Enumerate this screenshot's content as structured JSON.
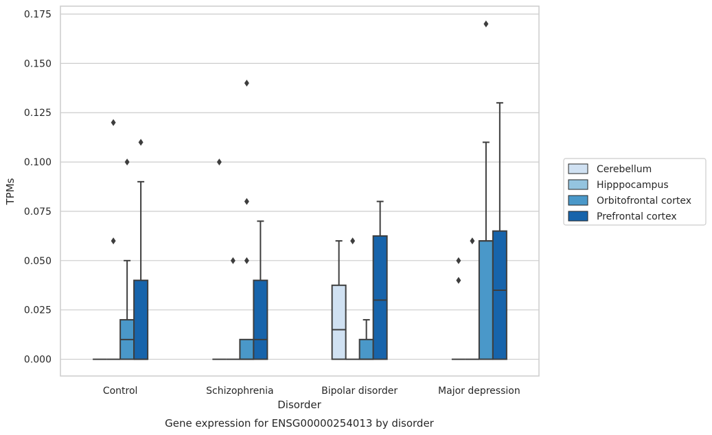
{
  "chart_data": {
    "type": "box",
    "caption": "Gene expression for ENSG00000254013 by disorder",
    "xlabel": "Disorder",
    "ylabel": "TPMs",
    "ylim": [
      -0.0085,
      0.179
    ],
    "yticks": [
      0,
      0.025,
      0.05,
      0.075,
      0.1,
      0.125,
      0.15,
      0.175
    ],
    "ytick_labels": [
      "0.000",
      "0.025",
      "0.050",
      "0.075",
      "0.100",
      "0.125",
      "0.150",
      "0.175"
    ],
    "grid": "horizontal",
    "legend_position": "right",
    "categories": [
      "Control",
      "Schizophrenia",
      "Bipolar disorder",
      "Major depression"
    ],
    "series": [
      {
        "name": "Cerebellum",
        "color": "#d0e1f2",
        "boxes": [
          {
            "q1": 0,
            "median": 0,
            "q3": 0,
            "whisker_low": 0,
            "whisker_high": 0,
            "outliers": []
          },
          {
            "q1": 0,
            "median": 0,
            "q3": 0,
            "whisker_low": 0,
            "whisker_high": 0,
            "outliers": [
              0.1
            ]
          },
          {
            "q1": 0,
            "median": 0.015,
            "q3": 0.0375,
            "whisker_low": 0,
            "whisker_high": 0.06,
            "outliers": []
          },
          {
            "q1": 0,
            "median": 0,
            "q3": 0,
            "whisker_low": 0,
            "whisker_high": 0,
            "outliers": [
              0.05,
              0.04
            ]
          }
        ]
      },
      {
        "name": "Hipppocampus",
        "color": "#94c4df",
        "boxes": [
          {
            "q1": 0,
            "median": 0,
            "q3": 0,
            "whisker_low": 0,
            "whisker_high": 0,
            "outliers": [
              0.06,
              0.12
            ]
          },
          {
            "q1": 0,
            "median": 0,
            "q3": 0,
            "whisker_low": 0,
            "whisker_high": 0,
            "outliers": [
              0.05
            ]
          },
          {
            "q1": 0,
            "median": 0,
            "q3": 0,
            "whisker_low": 0,
            "whisker_high": 0,
            "outliers": [
              0.06
            ]
          },
          {
            "q1": 0,
            "median": 0,
            "q3": 0,
            "whisker_low": 0,
            "whisker_high": 0,
            "outliers": [
              0.06
            ]
          }
        ]
      },
      {
        "name": "Orbitofrontal cortex",
        "color": "#4a98c9",
        "boxes": [
          {
            "q1": 0,
            "median": 0.01,
            "q3": 0.02,
            "whisker_low": 0,
            "whisker_high": 0.05,
            "outliers": [
              0.1
            ]
          },
          {
            "q1": 0,
            "median": 0,
            "q3": 0.01,
            "whisker_low": 0,
            "whisker_high": 0.01,
            "outliers": [
              0.05,
              0.08,
              0.14
            ]
          },
          {
            "q1": 0,
            "median": 0,
            "q3": 0.01,
            "whisker_low": 0,
            "whisker_high": 0.02,
            "outliers": []
          },
          {
            "q1": 0,
            "median": 0.06,
            "q3": 0.06,
            "whisker_low": 0,
            "whisker_high": 0.11,
            "outliers": [
              0.17
            ]
          }
        ]
      },
      {
        "name": "Prefrontal cortex",
        "color": "#1764ab",
        "boxes": [
          {
            "q1": 0,
            "median": 0,
            "q3": 0.04,
            "whisker_low": 0,
            "whisker_high": 0.09,
            "outliers": [
              0.11
            ]
          },
          {
            "q1": 0,
            "median": 0.01,
            "q3": 0.04,
            "whisker_low": 0,
            "whisker_high": 0.07,
            "outliers": []
          },
          {
            "q1": 0,
            "median": 0.03,
            "q3": 0.0625,
            "whisker_low": 0,
            "whisker_high": 0.08,
            "outliers": []
          },
          {
            "q1": 0,
            "median": 0.035,
            "q3": 0.065,
            "whisker_low": 0,
            "whisker_high": 0.13,
            "outliers": []
          }
        ]
      }
    ],
    "colors": {
      "axes_edge": "#cccccc",
      "grid": "#cccccc",
      "box_edge": "#3d3d3d",
      "text": "#262626"
    }
  }
}
